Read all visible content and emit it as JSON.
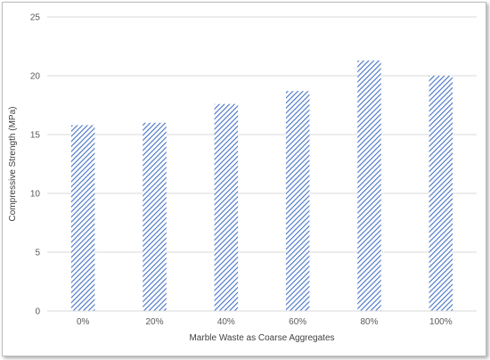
{
  "chart_data": {
    "type": "bar",
    "title": "",
    "xlabel": "Marble Waste as Coarse Aggregates",
    "ylabel": "Compressive Strength (MPa)",
    "categories": [
      "0%",
      "20%",
      "40%",
      "60%",
      "80%",
      "100%"
    ],
    "values": [
      15.8,
      16.0,
      17.6,
      18.7,
      21.3,
      20.0
    ],
    "ylim": [
      0,
      25
    ],
    "yticks": [
      "0",
      "5",
      "10",
      "15",
      "20",
      "25"
    ],
    "grid": true,
    "legend": "none",
    "bar_color": "#4472c4",
    "bar_fill": "diagonal-hatch"
  }
}
